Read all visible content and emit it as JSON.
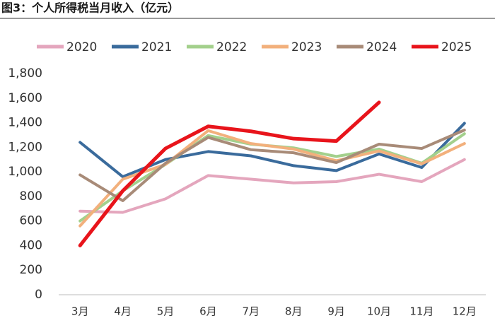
{
  "chart_data": {
    "type": "line",
    "title": "图3：个人所得税当月收入（亿元）",
    "categories": [
      "3月",
      "4月",
      "5月",
      "6月",
      "7月",
      "8月",
      "9月",
      "10月",
      "11月",
      "12月"
    ],
    "series": [
      {
        "name": "2020",
        "color": "#e4a6bd",
        "values": [
          680,
          670,
          780,
          970,
          940,
          910,
          920,
          980,
          920,
          1100
        ]
      },
      {
        "name": "2021",
        "color": "#3a6b9c",
        "values": [
          1240,
          960,
          1100,
          1165,
          1130,
          1050,
          1010,
          1145,
          1035,
          1395
        ]
      },
      {
        "name": "2022",
        "color": "#a3d08c",
        "values": [
          600,
          845,
          1060,
          1295,
          1225,
          1195,
          1125,
          1185,
          1070,
          1310
        ]
      },
      {
        "name": "2023",
        "color": "#f2b07c",
        "values": [
          560,
          940,
          1060,
          1335,
          1230,
          1185,
          1090,
          1170,
          1065,
          1230
        ]
      },
      {
        "name": "2024",
        "color": "#a88b78",
        "values": [
          975,
          765,
          1070,
          1280,
          1180,
          1155,
          1075,
          1225,
          1190,
          1340
        ]
      },
      {
        "name": "2025",
        "color": "#e8141b",
        "values": [
          400,
          845,
          1190,
          1370,
          1330,
          1270,
          1250,
          1565,
          null,
          null
        ]
      }
    ],
    "ylim": [
      0,
      1800
    ],
    "yticks": [
      0,
      200,
      400,
      600,
      800,
      {
        "value": 1000,
        "label": "1,000"
      },
      {
        "value": 1200,
        "label": "1,200"
      },
      {
        "value": 1400,
        "label": "1,400"
      },
      {
        "value": 1600,
        "label": "1,600"
      },
      {
        "value": 1800,
        "label": "1,800"
      }
    ]
  }
}
